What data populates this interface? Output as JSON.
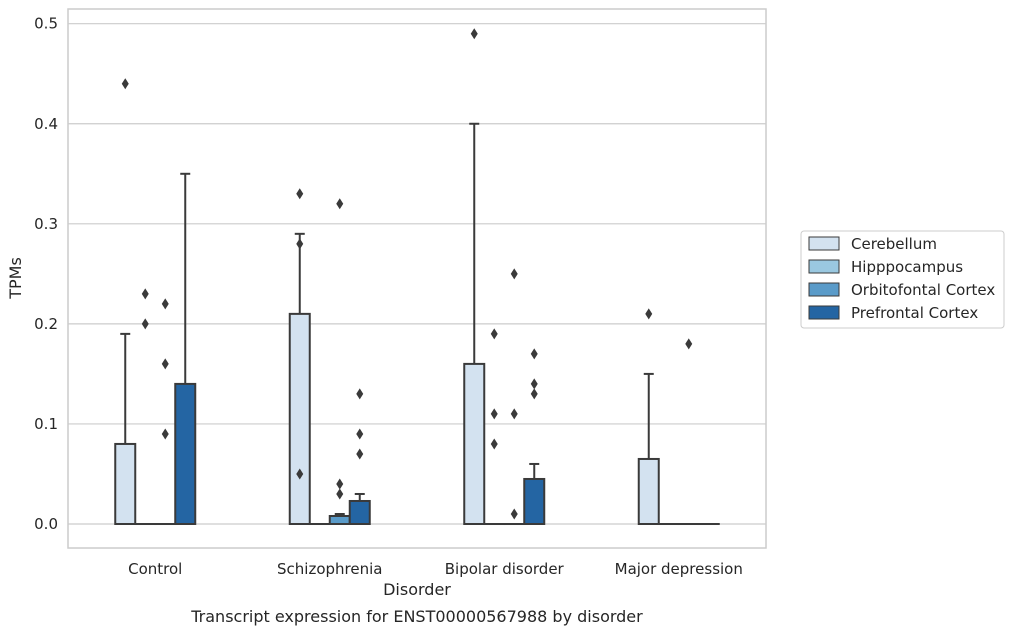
{
  "chart_data": {
    "type": "box",
    "title": "",
    "caption": "Transcript expression for ENST00000567988 by disorder",
    "xlabel": "Disorder",
    "ylabel": "TPMs",
    "ylim": [
      -0.023,
      0.515
    ],
    "yticks": [
      "0.0",
      "0.1",
      "0.2",
      "0.3",
      "0.4",
      "0.5"
    ],
    "grid": true,
    "legend_position": "right",
    "categories": [
      "Control",
      "Schizophrenia",
      "Bipolar disorder",
      "Major depression"
    ],
    "series": [
      {
        "name": "Cerebellum",
        "color": "#d3e2f0",
        "boxes": [
          {
            "q1": 0,
            "median": 0,
            "q3": 0.08,
            "whisker_low": 0,
            "whisker_high": 0.19,
            "outliers": [
              0.44
            ]
          },
          {
            "q1": 0,
            "median": 0,
            "q3": 0.21,
            "whisker_low": 0,
            "whisker_high": 0.29,
            "outliers": [
              0.33,
              0.28,
              0.05
            ]
          },
          {
            "q1": 0,
            "median": 0,
            "q3": 0.16,
            "whisker_low": 0,
            "whisker_high": 0.4,
            "outliers": [
              0.49
            ]
          },
          {
            "q1": 0,
            "median": 0,
            "q3": 0.065,
            "whisker_low": 0,
            "whisker_high": 0.15,
            "outliers": [
              0.21
            ]
          }
        ]
      },
      {
        "name": "Hipppocampus",
        "color": "#9ac8e0",
        "boxes": [
          {
            "q1": 0,
            "median": 0,
            "q3": 0,
            "whisker_low": 0,
            "whisker_high": 0,
            "outliers": [
              0.23,
              0.2
            ]
          },
          {
            "q1": 0,
            "median": 0,
            "q3": 0,
            "whisker_low": 0,
            "whisker_high": 0,
            "outliers": []
          },
          {
            "q1": 0,
            "median": 0,
            "q3": 0,
            "whisker_low": 0,
            "whisker_high": 0,
            "outliers": [
              0.19,
              0.11,
              0.08
            ]
          },
          {
            "q1": 0,
            "median": 0,
            "q3": 0,
            "whisker_low": 0,
            "whisker_high": 0,
            "outliers": []
          }
        ]
      },
      {
        "name": "Orbitofontal Cortex",
        "color": "#5a9bc9",
        "boxes": [
          {
            "q1": 0,
            "median": 0,
            "q3": 0,
            "whisker_low": 0,
            "whisker_high": 0,
            "outliers": [
              0.22,
              0.16,
              0.09
            ]
          },
          {
            "q1": 0,
            "median": 0,
            "q3": 0.008,
            "whisker_low": 0,
            "whisker_high": 0.01,
            "outliers": [
              0.32,
              0.04,
              0.03
            ]
          },
          {
            "q1": 0,
            "median": 0,
            "q3": 0,
            "whisker_low": 0,
            "whisker_high": 0,
            "outliers": [
              0.25,
              0.11,
              0.01
            ]
          },
          {
            "q1": 0,
            "median": 0,
            "q3": 0,
            "whisker_low": 0,
            "whisker_high": 0,
            "outliers": [
              0.18
            ]
          }
        ]
      },
      {
        "name": "Prefrontal Cortex",
        "color": "#2465a3",
        "boxes": [
          {
            "q1": 0,
            "median": 0,
            "q3": 0.14,
            "whisker_low": 0,
            "whisker_high": 0.35,
            "outliers": []
          },
          {
            "q1": 0,
            "median": 0,
            "q3": 0.023,
            "whisker_low": 0,
            "whisker_high": 0.03,
            "outliers": [
              0.13,
              0.09,
              0.07
            ]
          },
          {
            "q1": 0,
            "median": 0,
            "q3": 0.045,
            "whisker_low": 0,
            "whisker_high": 0.06,
            "outliers": [
              0.17,
              0.14,
              0.13
            ]
          },
          {
            "q1": 0,
            "median": 0,
            "q3": 0,
            "whisker_low": 0,
            "whisker_high": 0,
            "outliers": []
          }
        ]
      }
    ]
  }
}
